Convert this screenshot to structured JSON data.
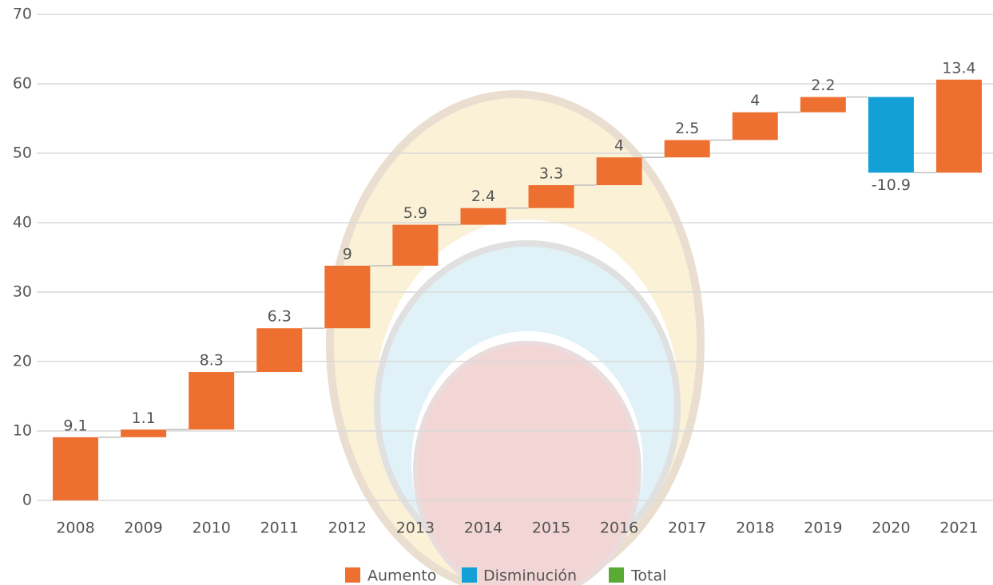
{
  "chart_data": {
    "type": "waterfall",
    "categories": [
      "2008",
      "2009",
      "2010",
      "2011",
      "2012",
      "2013",
      "2014",
      "2015",
      "2016",
      "2017",
      "2018",
      "2019",
      "2020",
      "2021"
    ],
    "values": [
      9.1,
      1.1,
      8.3,
      6.3,
      9,
      5.9,
      2.4,
      3.3,
      4,
      2.5,
      4,
      2.2,
      -10.9,
      13.4
    ],
    "legend": [
      {
        "name": "Aumento",
        "color": "#ed7031"
      },
      {
        "name": "Disminución",
        "color": "#12a0d7"
      },
      {
        "name": "Total",
        "color": "#5aab35"
      }
    ],
    "ylim": [
      0,
      70
    ],
    "yticks": [
      0,
      10,
      20,
      30,
      40,
      50,
      60,
      70
    ],
    "grid": true
  }
}
